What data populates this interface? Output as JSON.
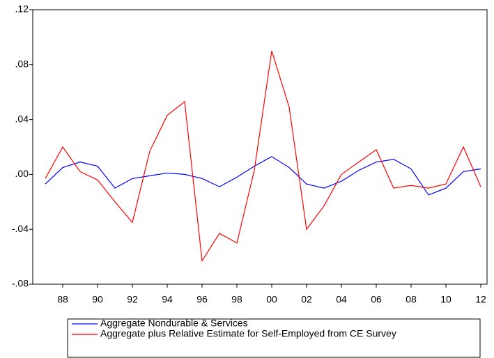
{
  "chart_data": {
    "type": "line",
    "x": [
      1987,
      1988,
      1989,
      1990,
      1991,
      1992,
      1993,
      1994,
      1995,
      1996,
      1997,
      1998,
      1999,
      2000,
      2001,
      2002,
      2003,
      2004,
      2005,
      2006,
      2007,
      2008,
      2009,
      2010,
      2011,
      2012
    ],
    "series": [
      {
        "name": "Aggregate Nondurable & Services",
        "color": "#0000ff",
        "values": [
          -0.007,
          0.005,
          0.009,
          0.006,
          -0.01,
          -0.003,
          -0.001,
          0.001,
          0.0,
          -0.003,
          -0.009,
          -0.002,
          0.006,
          0.013,
          0.005,
          -0.007,
          -0.01,
          -0.005,
          0.003,
          0.009,
          0.011,
          0.004,
          -0.015,
          -0.01,
          0.002,
          0.004
        ]
      },
      {
        "name": "Aggregate plus Relative Estimate for Self-Employed from CE Survey",
        "color": "#ff0000",
        "values": [
          -0.003,
          0.02,
          0.002,
          -0.004,
          -0.02,
          -0.035,
          0.017,
          0.043,
          0.053,
          -0.063,
          -0.043,
          -0.05,
          0.003,
          0.09,
          0.049,
          -0.04,
          -0.023,
          0.0,
          0.009,
          0.018,
          -0.01,
          -0.008,
          -0.01,
          -0.007,
          0.02,
          -0.009
        ]
      }
    ],
    "xlim": [
      1986.28,
      2012.36
    ],
    "xticks": [
      {
        "value": 1988,
        "label": "88"
      },
      {
        "value": 1990,
        "label": "90"
      },
      {
        "value": 1992,
        "label": "92"
      },
      {
        "value": 1994,
        "label": "94"
      },
      {
        "value": 1996,
        "label": "96"
      },
      {
        "value": 1998,
        "label": "98"
      },
      {
        "value": 2000,
        "label": "00"
      },
      {
        "value": 2002,
        "label": "02"
      },
      {
        "value": 2004,
        "label": "04"
      },
      {
        "value": 2006,
        "label": "06"
      },
      {
        "value": 2008,
        "label": "08"
      },
      {
        "value": 2010,
        "label": "10"
      },
      {
        "value": 2012,
        "label": "12"
      }
    ],
    "ylim": [
      -0.08,
      0.12
    ],
    "yticks": [
      {
        "value": -0.08,
        "label": "-.08"
      },
      {
        "value": -0.04,
        "label": "-.04"
      },
      {
        "value": 0,
        "label": ".00"
      },
      {
        "value": 0.04,
        "label": ".04"
      },
      {
        "value": 0.08,
        "label": ".08"
      },
      {
        "value": 0.12,
        "label": ".12"
      }
    ],
    "legend": "bottom"
  }
}
